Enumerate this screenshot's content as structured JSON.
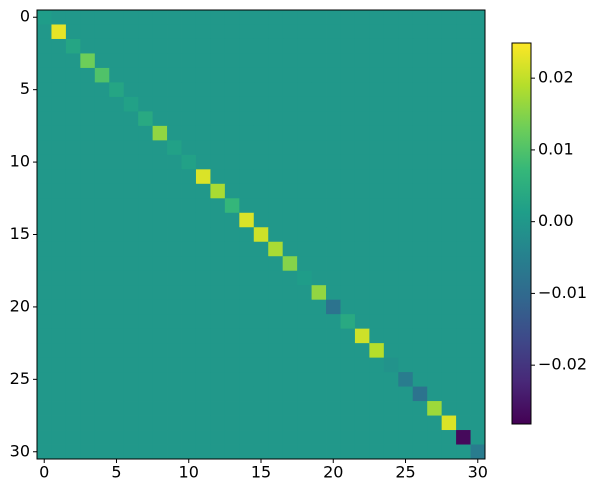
{
  "chart_data": {
    "type": "heatmap",
    "colormap": "viridis",
    "xlim": [
      -0.5,
      30.5
    ],
    "ylim": [
      30.5,
      -0.5
    ],
    "xticks": [
      0,
      5,
      10,
      15,
      20,
      25,
      30
    ],
    "yticks": [
      0,
      5,
      10,
      15,
      20,
      25,
      30
    ],
    "clim": [
      -0.0282,
      0.0249
    ],
    "cticks": [
      0.02,
      0.01,
      {
        "value": 0,
        "label": "0.00"
      },
      {
        "value": -0.01,
        "label": "−0.01"
      },
      {
        "value": -0.02,
        "label": "−0.02"
      }
    ],
    "z": [
      [
        0.001,
        0,
        0,
        0,
        0,
        0,
        0,
        0,
        0,
        0,
        0,
        0,
        0,
        0,
        0,
        0,
        0,
        0,
        0,
        0,
        0,
        0,
        0,
        0,
        0,
        0,
        0,
        0,
        0,
        0,
        0
      ],
      [
        0,
        0.023,
        0,
        0,
        0,
        0,
        0,
        0,
        0,
        0,
        0,
        0,
        0,
        0,
        0,
        0,
        0,
        0,
        0,
        0,
        0,
        0,
        0,
        0,
        0,
        0,
        0,
        0,
        0,
        0,
        0
      ],
      [
        0,
        0,
        0.003,
        0,
        0,
        0,
        0,
        0,
        0,
        0,
        0,
        0,
        0,
        0,
        0,
        0,
        0,
        0,
        0,
        0,
        0,
        0,
        0,
        0,
        0,
        0,
        0,
        0,
        0,
        0,
        0
      ],
      [
        0,
        0,
        0,
        0.013,
        0,
        0,
        0,
        0,
        0,
        0,
        0,
        0,
        0,
        0,
        0,
        0,
        0,
        0,
        0,
        0,
        0,
        0,
        0,
        0,
        0,
        0,
        0,
        0,
        0,
        0,
        0
      ],
      [
        0,
        0,
        0,
        0,
        0.01,
        0,
        0,
        0,
        0,
        0,
        0,
        0,
        0,
        0,
        0,
        0,
        0,
        0,
        0,
        0,
        0,
        0,
        0,
        0,
        0,
        0,
        0,
        0,
        0,
        0,
        0
      ],
      [
        0,
        0,
        0,
        0,
        0,
        0.003,
        0,
        0,
        0,
        0,
        0,
        0,
        0,
        0,
        0,
        0,
        0,
        0,
        0,
        0,
        0,
        0,
        0,
        0,
        0,
        0,
        0,
        0,
        0,
        0,
        0
      ],
      [
        0,
        0,
        0,
        0,
        0,
        0,
        0.002,
        0,
        0,
        0,
        0,
        0,
        0,
        0,
        0,
        0,
        0,
        0,
        0,
        0,
        0,
        0,
        0,
        0,
        0,
        0,
        0,
        0,
        0,
        0,
        0
      ],
      [
        0,
        0,
        0,
        0,
        0,
        0,
        0,
        0.004,
        0,
        0,
        0,
        0,
        0,
        0,
        0,
        0,
        0,
        0,
        0,
        0,
        0,
        0,
        0,
        0,
        0,
        0,
        0,
        0,
        0,
        0,
        0
      ],
      [
        0,
        0,
        0,
        0,
        0,
        0,
        0,
        0,
        0.016,
        0,
        0,
        0,
        0,
        0,
        0,
        0,
        0,
        0,
        0,
        0,
        0,
        0,
        0,
        0,
        0,
        0,
        0,
        0,
        0,
        0,
        0
      ],
      [
        0,
        0,
        0,
        0,
        0,
        0,
        0,
        0,
        0,
        0.002,
        0,
        0,
        0,
        0,
        0,
        0,
        0,
        0,
        0,
        0,
        0,
        0,
        0,
        0,
        0,
        0,
        0,
        0,
        0,
        0,
        0
      ],
      [
        0,
        0,
        0,
        0,
        0,
        0,
        0,
        0,
        0,
        0,
        0.002,
        0,
        0,
        0,
        0,
        0,
        0,
        0,
        0,
        0,
        0,
        0,
        0,
        0,
        0,
        0,
        0,
        0,
        0,
        0,
        0
      ],
      [
        0,
        0,
        0,
        0,
        0,
        0,
        0,
        0,
        0,
        0,
        0,
        0.022,
        0,
        0,
        0,
        0,
        0,
        0,
        0,
        0,
        0,
        0,
        0,
        0,
        0,
        0,
        0,
        0,
        0,
        0,
        0
      ],
      [
        0,
        0,
        0,
        0,
        0,
        0,
        0,
        0,
        0,
        0,
        0,
        0,
        0.018,
        0,
        0,
        0,
        0,
        0,
        0,
        0,
        0,
        0,
        0,
        0,
        0,
        0,
        0,
        0,
        0,
        0,
        0
      ],
      [
        0,
        0,
        0,
        0,
        0,
        0,
        0,
        0,
        0,
        0,
        0,
        0,
        0,
        0.007,
        0,
        0,
        0,
        0,
        0,
        0,
        0,
        0,
        0,
        0,
        0,
        0,
        0,
        0,
        0,
        0,
        0
      ],
      [
        0,
        0,
        0,
        0,
        0,
        0,
        0,
        0,
        0,
        0,
        0,
        0,
        0,
        0,
        0.022,
        0,
        0,
        0,
        0,
        0,
        0,
        0,
        0,
        0,
        0,
        0,
        0,
        0,
        0,
        0,
        0
      ],
      [
        0,
        0,
        0,
        0,
        0,
        0,
        0,
        0,
        0,
        0,
        0,
        0,
        0,
        0,
        0,
        0.021,
        0,
        0,
        0,
        0,
        0,
        0,
        0,
        0,
        0,
        0,
        0,
        0,
        0,
        0,
        0
      ],
      [
        0,
        0,
        0,
        0,
        0,
        0,
        0,
        0,
        0,
        0,
        0,
        0,
        0,
        0,
        0,
        0,
        0.018,
        0,
        0,
        0,
        0,
        0,
        0,
        0,
        0,
        0,
        0,
        0,
        0,
        0,
        0
      ],
      [
        0,
        0,
        0,
        0,
        0,
        0,
        0,
        0,
        0,
        0,
        0,
        0,
        0,
        0,
        0,
        0,
        0,
        0.015,
        0,
        0,
        0,
        0,
        0,
        0,
        0,
        0,
        0,
        0,
        0,
        0,
        0
      ],
      [
        0,
        0,
        0,
        0,
        0,
        0,
        0,
        0,
        0,
        0,
        0,
        0,
        0,
        0,
        0,
        0,
        0,
        0,
        0.001,
        0,
        0,
        0,
        0,
        0,
        0,
        0,
        0,
        0,
        0,
        0,
        0
      ],
      [
        0,
        0,
        0,
        0,
        0,
        0,
        0,
        0,
        0,
        0,
        0,
        0,
        0,
        0,
        0,
        0,
        0,
        0,
        0,
        0.016,
        0,
        0,
        0,
        0,
        0,
        0,
        0,
        0,
        0,
        0,
        0
      ],
      [
        0,
        0,
        0,
        0,
        0,
        0,
        0,
        0,
        0,
        0,
        0,
        0,
        0,
        0,
        0,
        0,
        0,
        0,
        0,
        0,
        -0.008,
        0,
        0,
        0,
        0,
        0,
        0,
        0,
        0,
        0,
        0
      ],
      [
        0,
        0,
        0,
        0,
        0,
        0,
        0,
        0,
        0,
        0,
        0,
        0,
        0,
        0,
        0,
        0,
        0,
        0,
        0,
        0,
        0,
        0.004,
        0,
        0,
        0,
        0,
        0,
        0,
        0,
        0,
        0
      ],
      [
        0,
        0,
        0,
        0,
        0,
        0,
        0,
        0,
        0,
        0,
        0,
        0,
        0,
        0,
        0,
        0,
        0,
        0,
        0,
        0,
        0,
        0,
        0.021,
        0,
        0,
        0,
        0,
        0,
        0,
        0,
        0
      ],
      [
        0,
        0,
        0,
        0,
        0,
        0,
        0,
        0,
        0,
        0,
        0,
        0,
        0,
        0,
        0,
        0,
        0,
        0,
        0,
        0,
        0,
        0,
        0,
        0.019,
        0,
        0,
        0,
        0,
        0,
        0,
        0
      ],
      [
        0,
        0,
        0,
        0,
        0,
        0,
        0,
        0,
        0,
        0,
        0,
        0,
        0,
        0,
        0,
        0,
        0,
        0,
        0,
        0,
        0,
        0,
        0,
        0,
        -0.001,
        0,
        0,
        0,
        0,
        0,
        0
      ],
      [
        0,
        0,
        0,
        0,
        0,
        0,
        0,
        0,
        0,
        0,
        0,
        0,
        0,
        0,
        0,
        0,
        0,
        0,
        0,
        0,
        0,
        0,
        0,
        0,
        0,
        -0.006,
        0,
        0,
        0,
        0,
        0
      ],
      [
        0,
        0,
        0,
        0,
        0,
        0,
        0,
        0,
        0,
        0,
        0,
        0,
        0,
        0,
        0,
        0,
        0,
        0,
        0,
        0,
        0,
        0,
        0,
        0,
        0,
        0,
        -0.008,
        0,
        0,
        0,
        0
      ],
      [
        0,
        0,
        0,
        0,
        0,
        0,
        0,
        0,
        0,
        0,
        0,
        0,
        0,
        0,
        0,
        0,
        0,
        0,
        0,
        0,
        0,
        0,
        0,
        0,
        0,
        0,
        0,
        0.017,
        0,
        0,
        0
      ],
      [
        0,
        0,
        0,
        0,
        0,
        0,
        0,
        0,
        0,
        0,
        0,
        0,
        0,
        0,
        0,
        0,
        0,
        0,
        0,
        0,
        0,
        0,
        0,
        0,
        0,
        0,
        0,
        0,
        0.022,
        0,
        0
      ],
      [
        0,
        0,
        0,
        0,
        0,
        0,
        0,
        0,
        0,
        0,
        0,
        0,
        0,
        0,
        0,
        0,
        0,
        0,
        0,
        0,
        0,
        0,
        0,
        0,
        0,
        0,
        0,
        0,
        0,
        -0.027,
        0
      ],
      [
        0,
        0,
        0,
        0,
        0,
        0,
        0,
        0,
        0,
        0,
        0,
        0,
        0,
        0,
        0,
        0,
        0,
        0,
        0,
        0,
        0,
        0,
        0,
        0,
        0,
        0,
        0,
        0,
        0,
        0,
        -0.006
      ]
    ]
  }
}
